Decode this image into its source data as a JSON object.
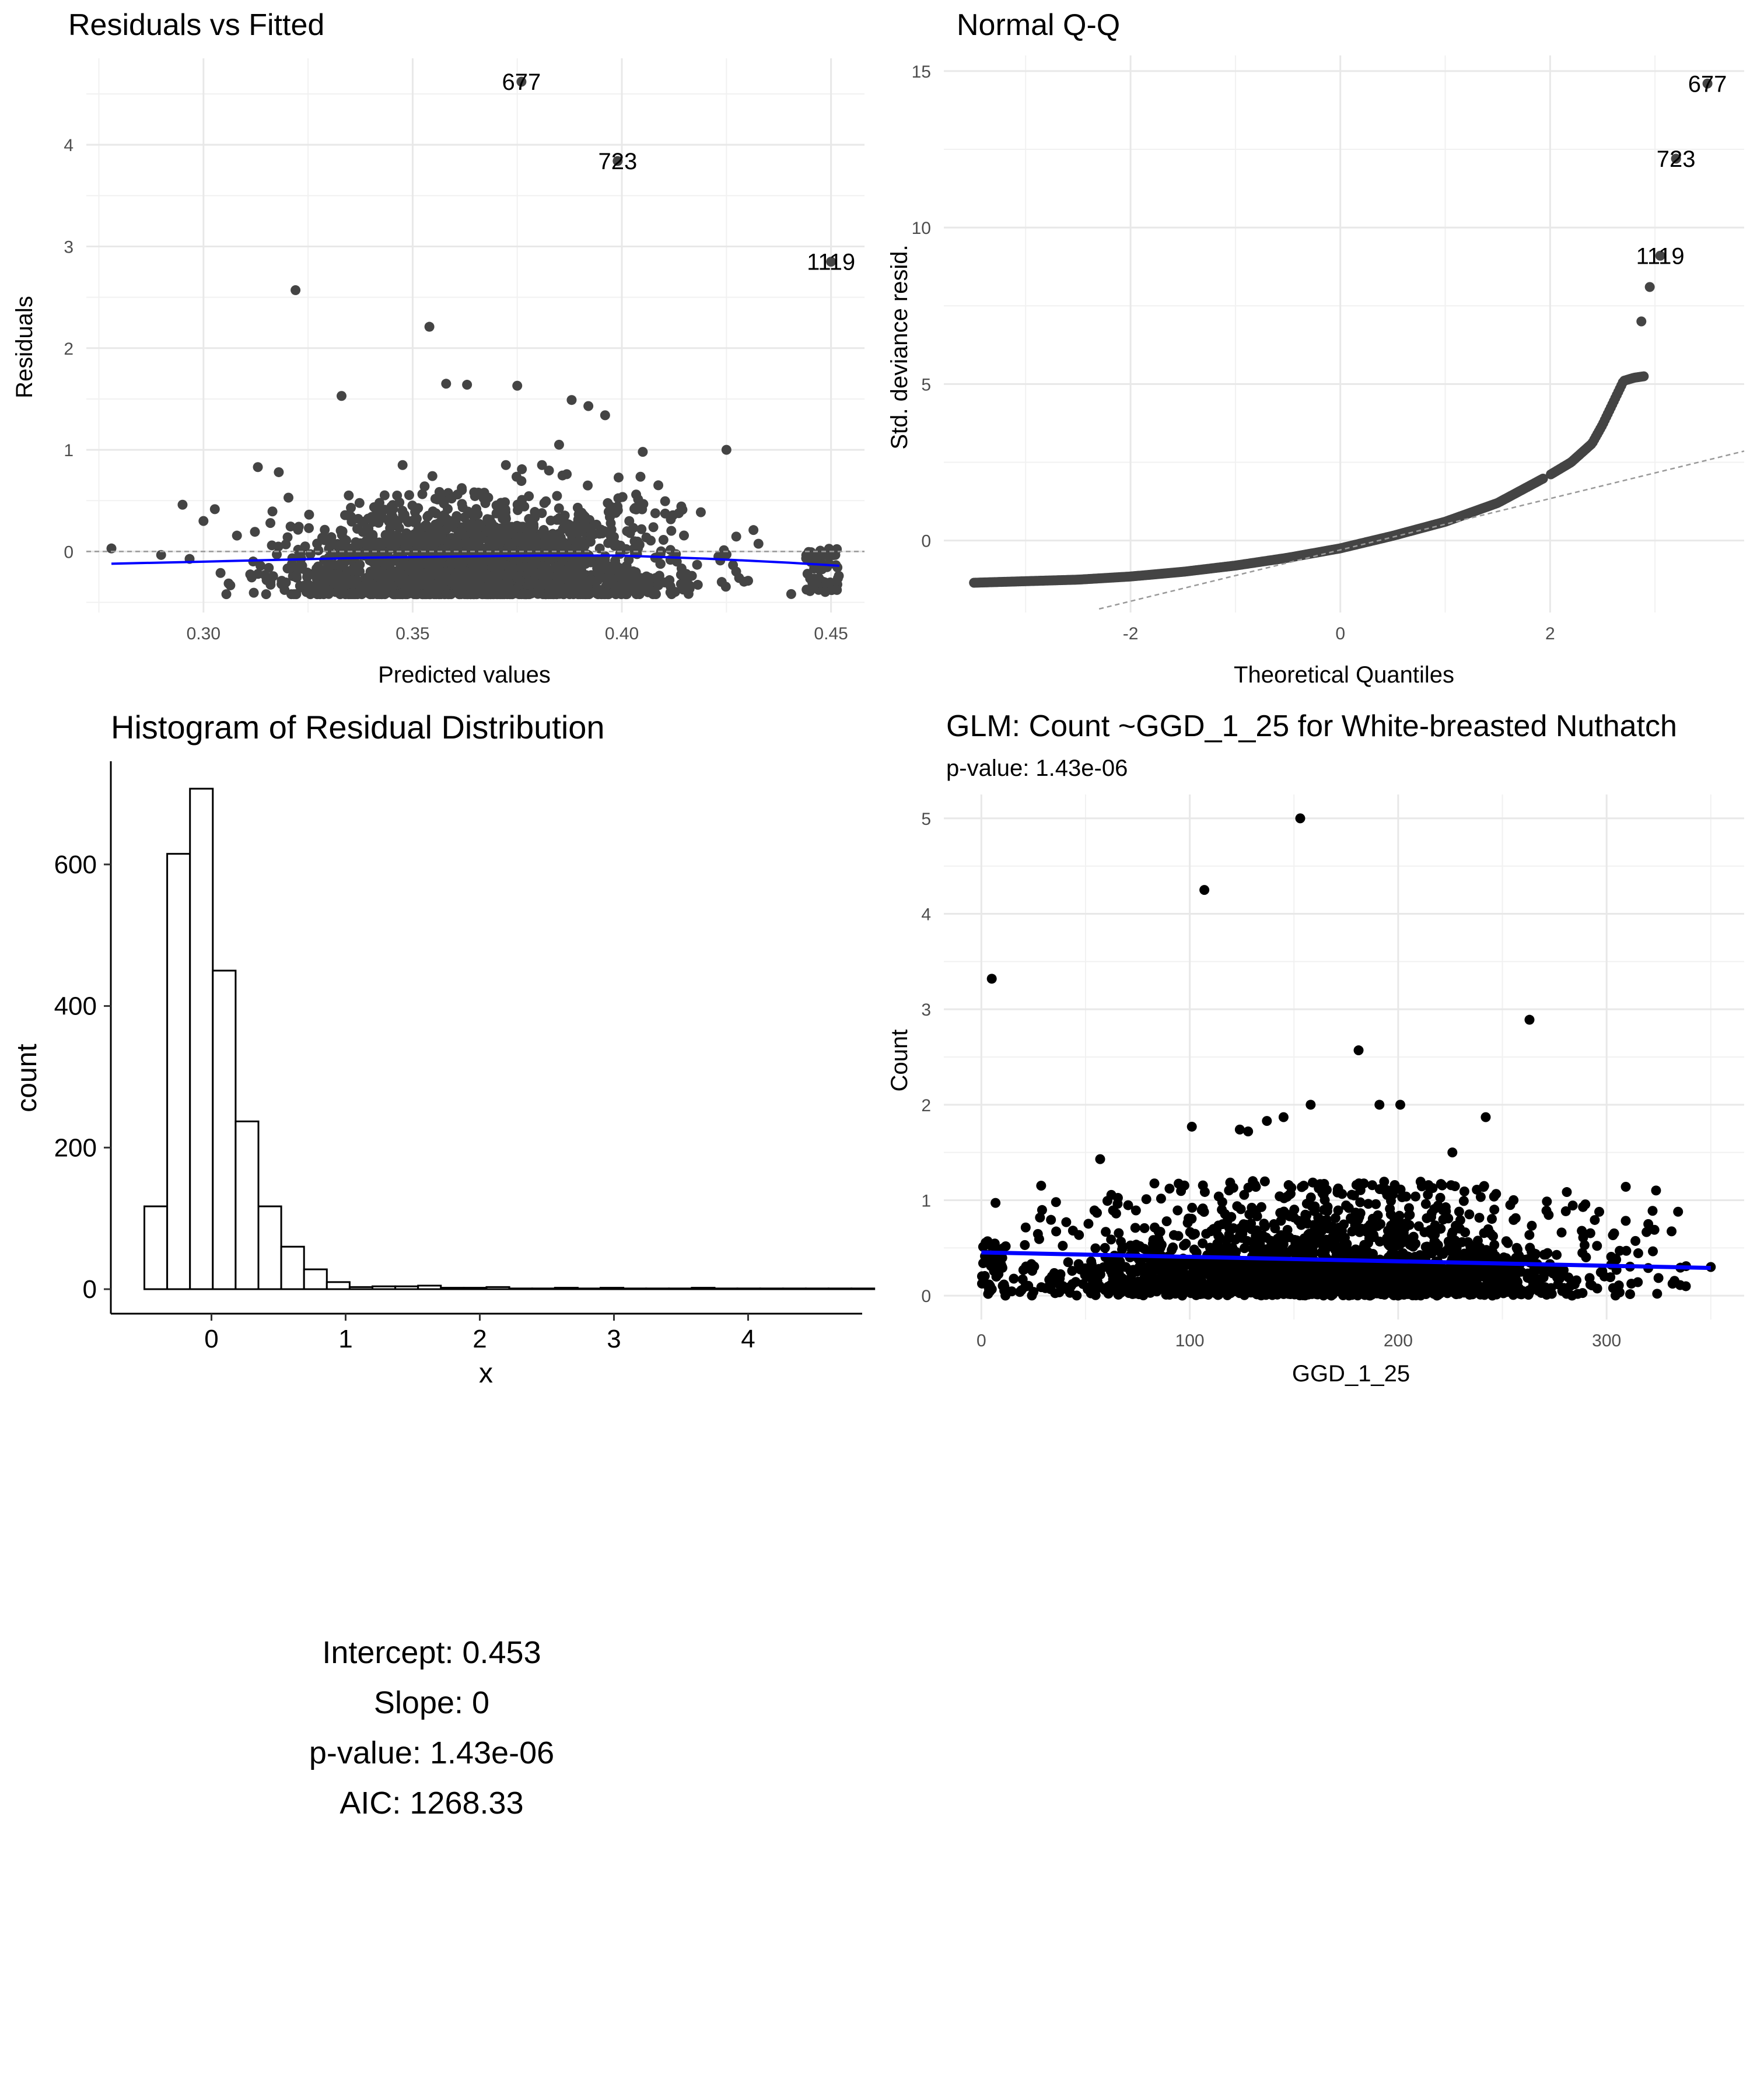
{
  "chart_data": [
    {
      "type": "scatter",
      "title": "Residuals vs Fitted",
      "xlabel": "Predicted values",
      "ylabel": "Residuals",
      "xlim": [
        0.272,
        0.458
      ],
      "ylim": [
        -0.6,
        4.85
      ],
      "xticks": [
        0.3,
        0.35,
        0.4,
        0.45
      ],
      "xtick_labels": [
        "0.30",
        "0.35",
        "0.40",
        "0.45"
      ],
      "yticks": [
        0,
        1,
        2,
        3,
        4
      ],
      "ytick_labels": [
        "0",
        "1",
        "2",
        "3",
        "4"
      ],
      "grid": true,
      "reference_line": {
        "y": 0,
        "style": "dashed",
        "color": "#999999"
      },
      "smooth_line": {
        "color": "#0000ff",
        "x": [
          0.278,
          0.3,
          0.32,
          0.34,
          0.36,
          0.38,
          0.4,
          0.42,
          0.44,
          0.452
        ],
        "y": [
          -0.12,
          -0.1,
          -0.08,
          -0.06,
          -0.05,
          -0.04,
          -0.04,
          -0.07,
          -0.11,
          -0.14
        ]
      },
      "labeled_points": [
        {
          "label": "677",
          "x": 0.376,
          "y": 4.62
        },
        {
          "label": "723",
          "x": 0.399,
          "y": 3.84
        },
        {
          "label": "1119",
          "x": 0.45,
          "y": 2.85
        }
      ],
      "outlier_points": [
        {
          "x": 0.322,
          "y": 2.57
        },
        {
          "x": 0.354,
          "y": 2.21
        },
        {
          "x": 0.358,
          "y": 1.65
        },
        {
          "x": 0.363,
          "y": 1.64
        },
        {
          "x": 0.375,
          "y": 1.63
        },
        {
          "x": 0.333,
          "y": 1.53
        },
        {
          "x": 0.388,
          "y": 1.49
        },
        {
          "x": 0.392,
          "y": 1.43
        },
        {
          "x": 0.396,
          "y": 1.34
        },
        {
          "x": 0.313,
          "y": 0.83
        },
        {
          "x": 0.318,
          "y": 0.78
        },
        {
          "x": 0.385,
          "y": 1.05
        },
        {
          "x": 0.425,
          "y": 1.0
        },
        {
          "x": 0.405,
          "y": 0.98
        },
        {
          "x": 0.295,
          "y": 0.46
        },
        {
          "x": 0.278,
          "y": 0.03
        },
        {
          "x": 0.3,
          "y": 0.3
        }
      ],
      "point_color": "#444444",
      "note": "bulk of ~2400 residuals lie between -0.4 and 0.8 across fitted values 0.28-0.45"
    },
    {
      "type": "scatter",
      "title": "Normal Q-Q",
      "xlabel": "Theoretical Quantiles",
      "ylabel": "Std. deviance resid.",
      "xlim": [
        -3.78,
        3.85
      ],
      "ylim": [
        -2.3,
        15.5
      ],
      "xticks": [
        -2,
        0,
        2
      ],
      "xtick_labels": [
        "-2",
        "0",
        "2"
      ],
      "yticks": [
        0,
        5,
        10,
        15
      ],
      "ytick_labels": [
        "0",
        "5",
        "10",
        "15"
      ],
      "grid": true,
      "reference_line": {
        "style": "dashed",
        "color": "#999999",
        "intercept": -0.3,
        "slope": 0.82
      },
      "qq_curve": {
        "x": [
          -3.5,
          -3.0,
          -2.5,
          -2.0,
          -1.5,
          -1.0,
          -0.5,
          0.0,
          0.5,
          1.0,
          1.5,
          2.0,
          2.2,
          2.4,
          2.5,
          2.6,
          2.7,
          2.8,
          2.9
        ],
        "y": [
          -1.35,
          -1.3,
          -1.25,
          -1.15,
          -1.0,
          -0.8,
          -0.55,
          -0.25,
          0.15,
          0.6,
          1.2,
          2.1,
          2.5,
          3.1,
          3.7,
          4.4,
          5.1,
          5.2,
          5.25
        ]
      },
      "labeled_points": [
        {
          "label": "677",
          "x": 3.5,
          "y": 14.6
        },
        {
          "label": "723",
          "x": 3.2,
          "y": 12.2
        },
        {
          "label": "1119",
          "x": 3.05,
          "y": 9.1
        }
      ],
      "extra_points": [
        {
          "x": 2.95,
          "y": 8.1
        },
        {
          "x": 2.87,
          "y": 7.0
        }
      ],
      "point_color": "#444444"
    },
    {
      "type": "bar",
      "title": "Histogram of Residual Distribution",
      "xlabel": "x",
      "ylabel": "count",
      "xlim": [
        -0.75,
        4.85
      ],
      "ylim": [
        0,
        740
      ],
      "xticks": [
        0,
        1,
        2,
        3,
        4
      ],
      "xtick_labels": [
        "0",
        "1",
        "2",
        "3",
        "4"
      ],
      "yticks": [
        0,
        200,
        400,
        600
      ],
      "ytick_labels": [
        "0",
        "200",
        "400",
        "600"
      ],
      "grid": false,
      "bin_start": -0.5,
      "bin_width": 0.17,
      "values": [
        117,
        615,
        707,
        450,
        237,
        117,
        60,
        28,
        10,
        3,
        4,
        4,
        5,
        2,
        2,
        3,
        1,
        1,
        2,
        1,
        2,
        1,
        1,
        1,
        2,
        1,
        1,
        1,
        1,
        1,
        1,
        1
      ]
    },
    {
      "type": "scatter",
      "title": "GLM: Count ~GGD_1_25 for White-breasted Nuthatch",
      "subtitle": "p-value: 1.43e-06",
      "xlabel": "GGD_1_25",
      "ylabel": "Count",
      "xlim": [
        -18,
        366
      ],
      "ylim": [
        -0.25,
        5.25
      ],
      "xticks": [
        0,
        100,
        200,
        300
      ],
      "xtick_labels": [
        "0",
        "100",
        "200",
        "300"
      ],
      "yticks": [
        0,
        1,
        2,
        3,
        4,
        5
      ],
      "ytick_labels": [
        "0",
        "1",
        "2",
        "3",
        "4",
        "5"
      ],
      "grid": true,
      "fit_line": {
        "color": "#0000ff",
        "x": [
          0,
          350
        ],
        "y": [
          0.453,
          0.29
        ]
      },
      "outlier_points": [
        {
          "x": 153,
          "y": 5.0
        },
        {
          "x": 107,
          "y": 4.25
        },
        {
          "x": 5,
          "y": 3.32
        },
        {
          "x": 263,
          "y": 2.89
        },
        {
          "x": 181,
          "y": 2.57
        },
        {
          "x": 158,
          "y": 2.0
        },
        {
          "x": 191,
          "y": 2.0
        },
        {
          "x": 201,
          "y": 2.0
        },
        {
          "x": 242,
          "y": 1.87
        },
        {
          "x": 145,
          "y": 1.87
        },
        {
          "x": 137,
          "y": 1.83
        },
        {
          "x": 101,
          "y": 1.77
        },
        {
          "x": 124,
          "y": 1.74
        },
        {
          "x": 128,
          "y": 1.72
        },
        {
          "x": 57,
          "y": 1.43
        },
        {
          "x": 226,
          "y": 1.5
        },
        {
          "x": 350,
          "y": 0.3
        },
        {
          "x": 320,
          "y": 0.75
        },
        {
          "x": 3,
          "y": 0.57
        }
      ],
      "point_color": "#000000",
      "note": "bulk of ~2400 observations lie between 0 and 1.2 across GGD_1_25 values 0-350"
    }
  ],
  "summary": {
    "intercept": "Intercept: 0.453",
    "slope": "Slope: 0",
    "p_value": "p-value: 1.43e-06",
    "aic": "AIC: 1268.33"
  }
}
